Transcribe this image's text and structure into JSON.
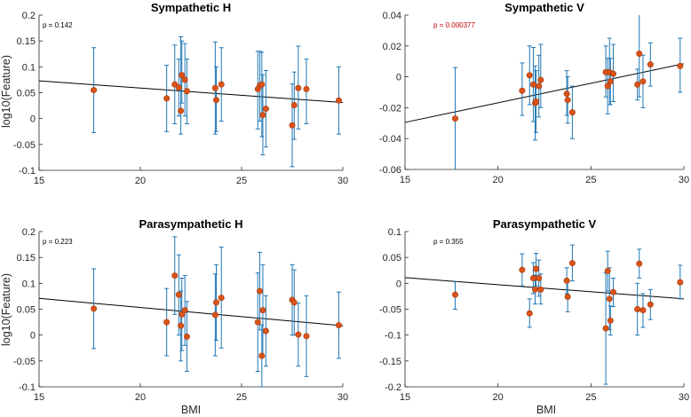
{
  "colors": {
    "errorbar": "#1f77b4",
    "marker": "#d95319",
    "marker_edge": "#a8390c",
    "fit": "#000000",
    "p_default": "#000000",
    "p_significant": "#c00000"
  },
  "shared_labels": {
    "ylabel": "log10(Feature)",
    "xlabel": "BMI"
  },
  "chart_data": [
    {
      "type": "scatter",
      "title": "Sympathetic H",
      "p_label": "p = 0.142",
      "p_significant": false,
      "xlabel": "",
      "ylabel": "log10(Feature)",
      "xlim": [
        15,
        30
      ],
      "ylim": [
        -0.1,
        0.2
      ],
      "xticks": [
        15,
        20,
        25,
        30
      ],
      "yticks": [
        -0.1,
        -0.05,
        0,
        0.05,
        0.1,
        0.15,
        0.2
      ],
      "ytick_labels": [
        "-0.1",
        "-0.05",
        "0",
        "0.05",
        "0.1",
        "0.15",
        "0.2"
      ],
      "fit_line": {
        "x": [
          15,
          30
        ],
        "y": [
          0.073,
          0.031
        ]
      },
      "points": [
        {
          "x": 17.7,
          "y": 0.055,
          "lo": -0.027,
          "hi": 0.137
        },
        {
          "x": 21.3,
          "y": 0.039,
          "lo": -0.025,
          "hi": 0.103
        },
        {
          "x": 21.7,
          "y": 0.066,
          "lo": -0.01,
          "hi": 0.142
        },
        {
          "x": 21.9,
          "y": 0.06,
          "lo": 0.005,
          "hi": 0.115
        },
        {
          "x": 22.0,
          "y": 0.015,
          "lo": -0.03,
          "hi": 0.158
        },
        {
          "x": 22.05,
          "y": 0.084,
          "lo": 0.03,
          "hi": 0.15
        },
        {
          "x": 22.2,
          "y": 0.075,
          "lo": 0.005,
          "hi": 0.145
        },
        {
          "x": 22.3,
          "y": 0.053,
          "lo": -0.01,
          "hi": 0.115
        },
        {
          "x": 23.7,
          "y": 0.059,
          "lo": -0.03,
          "hi": 0.148
        },
        {
          "x": 23.75,
          "y": 0.036,
          "lo": -0.025,
          "hi": 0.1
        },
        {
          "x": 24.0,
          "y": 0.066,
          "lo": -0.005,
          "hi": 0.137
        },
        {
          "x": 25.8,
          "y": 0.057,
          "lo": -0.02,
          "hi": 0.13
        },
        {
          "x": 25.9,
          "y": 0.064,
          "lo": -0.005,
          "hi": 0.13
        },
        {
          "x": 26.0,
          "y": 0.066,
          "lo": -0.035,
          "hi": 0.128
        },
        {
          "x": 26.05,
          "y": 0.007,
          "lo": -0.07,
          "hi": 0.085
        },
        {
          "x": 26.2,
          "y": 0.019,
          "lo": -0.055,
          "hi": 0.093
        },
        {
          "x": 27.5,
          "y": -0.013,
          "lo": -0.093,
          "hi": 0.067
        },
        {
          "x": 27.6,
          "y": 0.026,
          "lo": -0.04,
          "hi": 0.09
        },
        {
          "x": 27.8,
          "y": 0.059,
          "lo": -0.02,
          "hi": 0.14
        },
        {
          "x": 28.2,
          "y": 0.057,
          "lo": -0.01,
          "hi": 0.115
        },
        {
          "x": 29.8,
          "y": 0.035,
          "lo": -0.03,
          "hi": 0.1
        }
      ]
    },
    {
      "type": "scatter",
      "title": "Sympathetic V",
      "p_label": "p = 0.000377",
      "p_significant": true,
      "xlabel": "",
      "ylabel": "",
      "xlim": [
        15,
        30
      ],
      "ylim": [
        -0.06,
        0.04
      ],
      "xticks": [
        15,
        20,
        25,
        30
      ],
      "yticks": [
        -0.06,
        -0.04,
        -0.02,
        0,
        0.02,
        0.04
      ],
      "ytick_labels": [
        "-0.06",
        "-0.04",
        "-0.02",
        "0",
        "0.02",
        "0.04"
      ],
      "fit_line": {
        "x": [
          15,
          30
        ],
        "y": [
          -0.0295,
          0.0085
        ]
      },
      "points": [
        {
          "x": 17.7,
          "y": -0.027,
          "lo": -0.061,
          "hi": 0.006
        },
        {
          "x": 21.3,
          "y": -0.009,
          "lo": -0.025,
          "hi": 0.009
        },
        {
          "x": 21.7,
          "y": 0.001,
          "lo": -0.018,
          "hi": 0.02
        },
        {
          "x": 21.9,
          "y": -0.005,
          "lo": -0.029,
          "hi": 0.019
        },
        {
          "x": 22.0,
          "y": -0.017,
          "lo": -0.041,
          "hi": 0.007
        },
        {
          "x": 22.05,
          "y": -0.016,
          "lo": -0.036,
          "hi": 0.004
        },
        {
          "x": 22.2,
          "y": -0.006,
          "lo": -0.026,
          "hi": 0.014
        },
        {
          "x": 22.3,
          "y": -0.002,
          "lo": -0.02,
          "hi": 0.021
        },
        {
          "x": 23.7,
          "y": -0.011,
          "lo": -0.025,
          "hi": 0.004
        },
        {
          "x": 23.75,
          "y": -0.015,
          "lo": -0.03,
          "hi": 0.0
        },
        {
          "x": 24.0,
          "y": -0.023,
          "lo": -0.04,
          "hi": -0.006
        },
        {
          "x": 25.8,
          "y": 0.003,
          "lo": -0.013,
          "hi": 0.02
        },
        {
          "x": 25.9,
          "y": -0.006,
          "lo": -0.024,
          "hi": 0.012
        },
        {
          "x": 26.0,
          "y": 0.003,
          "lo": -0.018,
          "hi": 0.025
        },
        {
          "x": 26.05,
          "y": -0.003,
          "lo": -0.018,
          "hi": 0.012
        },
        {
          "x": 26.2,
          "y": 0.002,
          "lo": -0.016,
          "hi": 0.021
        },
        {
          "x": 27.5,
          "y": -0.005,
          "lo": -0.015,
          "hi": 0.005
        },
        {
          "x": 27.6,
          "y": 0.015,
          "lo": -0.013,
          "hi": 0.043
        },
        {
          "x": 27.8,
          "y": -0.003,
          "lo": -0.02,
          "hi": 0.014
        },
        {
          "x": 28.2,
          "y": 0.008,
          "lo": -0.006,
          "hi": 0.022
        },
        {
          "x": 29.8,
          "y": 0.007,
          "lo": -0.01,
          "hi": 0.025
        }
      ]
    },
    {
      "type": "scatter",
      "title": "Parasympathetic H",
      "p_label": "p = 0.223",
      "p_significant": false,
      "xlabel": "BMI",
      "ylabel": "log10(Feature)",
      "xlim": [
        15,
        30
      ],
      "ylim": [
        -0.1,
        0.2
      ],
      "xticks": [
        15,
        20,
        25,
        30
      ],
      "yticks": [
        -0.1,
        -0.05,
        0,
        0.05,
        0.1,
        0.15,
        0.2
      ],
      "ytick_labels": [
        "-0.1",
        "-0.05",
        "0",
        "0.05",
        "0.1",
        "0.15",
        "0.2"
      ],
      "fit_line": {
        "x": [
          15,
          30
        ],
        "y": [
          0.071,
          0.018
        ]
      },
      "points": [
        {
          "x": 17.7,
          "y": 0.051,
          "lo": -0.026,
          "hi": 0.128
        },
        {
          "x": 21.3,
          "y": 0.025,
          "lo": -0.04,
          "hi": 0.09
        },
        {
          "x": 21.7,
          "y": 0.115,
          "lo": 0.04,
          "hi": 0.19
        },
        {
          "x": 21.9,
          "y": 0.078,
          "lo": 0.0,
          "hi": 0.155
        },
        {
          "x": 22.0,
          "y": 0.018,
          "lo": -0.05,
          "hi": 0.085
        },
        {
          "x": 22.05,
          "y": 0.04,
          "lo": -0.03,
          "hi": 0.11
        },
        {
          "x": 22.2,
          "y": 0.048,
          "lo": -0.02,
          "hi": 0.115
        },
        {
          "x": 22.3,
          "y": -0.003,
          "lo": -0.07,
          "hi": 0.065
        },
        {
          "x": 23.7,
          "y": 0.039,
          "lo": -0.04,
          "hi": 0.118
        },
        {
          "x": 23.75,
          "y": 0.063,
          "lo": -0.01,
          "hi": 0.136
        },
        {
          "x": 24.0,
          "y": 0.072,
          "lo": -0.025,
          "hi": 0.17
        },
        {
          "x": 25.8,
          "y": 0.025,
          "lo": -0.07,
          "hi": 0.12
        },
        {
          "x": 25.9,
          "y": 0.085,
          "lo": 0.01,
          "hi": 0.16
        },
        {
          "x": 26.0,
          "y": -0.04,
          "lo": -0.1,
          "hi": 0.02
        },
        {
          "x": 26.05,
          "y": 0.048,
          "lo": -0.04,
          "hi": 0.136
        },
        {
          "x": 26.2,
          "y": 0.008,
          "lo": -0.06,
          "hi": 0.076
        },
        {
          "x": 27.5,
          "y": 0.068,
          "lo": 0.0,
          "hi": 0.136
        },
        {
          "x": 27.6,
          "y": 0.063,
          "lo": 0.0,
          "hi": 0.126
        },
        {
          "x": 27.8,
          "y": 0.001,
          "lo": -0.06,
          "hi": 0.062
        },
        {
          "x": 28.2,
          "y": -0.002,
          "lo": -0.08,
          "hi": 0.076
        },
        {
          "x": 29.8,
          "y": 0.019,
          "lo": -0.045,
          "hi": 0.083
        }
      ]
    },
    {
      "type": "scatter",
      "title": "Parasympathetic V",
      "p_label": "p = 0.355",
      "p_significant": false,
      "xlabel": "BMI",
      "ylabel": "",
      "xlim": [
        15,
        30
      ],
      "ylim": [
        -0.2,
        0.1
      ],
      "xticks": [
        15,
        20,
        25,
        30
      ],
      "yticks": [
        -0.2,
        -0.15,
        -0.1,
        -0.05,
        0,
        0.05,
        0.1
      ],
      "ytick_labels": [
        "-0.2",
        "-0.15",
        "-0.1",
        "-0.05",
        "0",
        "0.05",
        "0.1"
      ],
      "fit_line": {
        "x": [
          15,
          30
        ],
        "y": [
          0.011,
          -0.03
        ]
      },
      "points": [
        {
          "x": 17.7,
          "y": -0.022,
          "lo": -0.05,
          "hi": 0.003
        },
        {
          "x": 21.3,
          "y": 0.026,
          "lo": -0.005,
          "hi": 0.057
        },
        {
          "x": 21.7,
          "y": -0.058,
          "lo": -0.085,
          "hi": -0.03
        },
        {
          "x": 21.9,
          "y": 0.01,
          "lo": -0.02,
          "hi": 0.04
        },
        {
          "x": 22.0,
          "y": -0.012,
          "lo": -0.04,
          "hi": 0.016
        },
        {
          "x": 22.05,
          "y": 0.028,
          "lo": -0.005,
          "hi": 0.058
        },
        {
          "x": 22.2,
          "y": 0.01,
          "lo": -0.025,
          "hi": 0.045
        },
        {
          "x": 22.3,
          "y": -0.012,
          "lo": -0.04,
          "hi": 0.018
        },
        {
          "x": 23.7,
          "y": 0.005,
          "lo": -0.02,
          "hi": 0.03
        },
        {
          "x": 23.75,
          "y": -0.026,
          "lo": -0.055,
          "hi": 0.003
        },
        {
          "x": 24.0,
          "y": 0.039,
          "lo": 0.005,
          "hi": 0.074
        },
        {
          "x": 25.8,
          "y": -0.087,
          "lo": -0.195,
          "hi": 0.02
        },
        {
          "x": 25.9,
          "y": 0.024,
          "lo": -0.015,
          "hi": 0.062
        },
        {
          "x": 26.0,
          "y": -0.03,
          "lo": -0.09,
          "hi": 0.03
        },
        {
          "x": 26.05,
          "y": -0.072,
          "lo": -0.1,
          "hi": -0.044
        },
        {
          "x": 26.2,
          "y": -0.017,
          "lo": -0.045,
          "hi": 0.01
        },
        {
          "x": 27.5,
          "y": -0.05,
          "lo": -0.1,
          "hi": 0.0
        },
        {
          "x": 27.6,
          "y": 0.038,
          "lo": 0.01,
          "hi": 0.066
        },
        {
          "x": 27.8,
          "y": -0.052,
          "lo": -0.085,
          "hi": -0.02
        },
        {
          "x": 28.2,
          "y": -0.041,
          "lo": -0.07,
          "hi": -0.012
        },
        {
          "x": 29.8,
          "y": 0.002,
          "lo": -0.03,
          "hi": 0.035
        }
      ]
    }
  ]
}
